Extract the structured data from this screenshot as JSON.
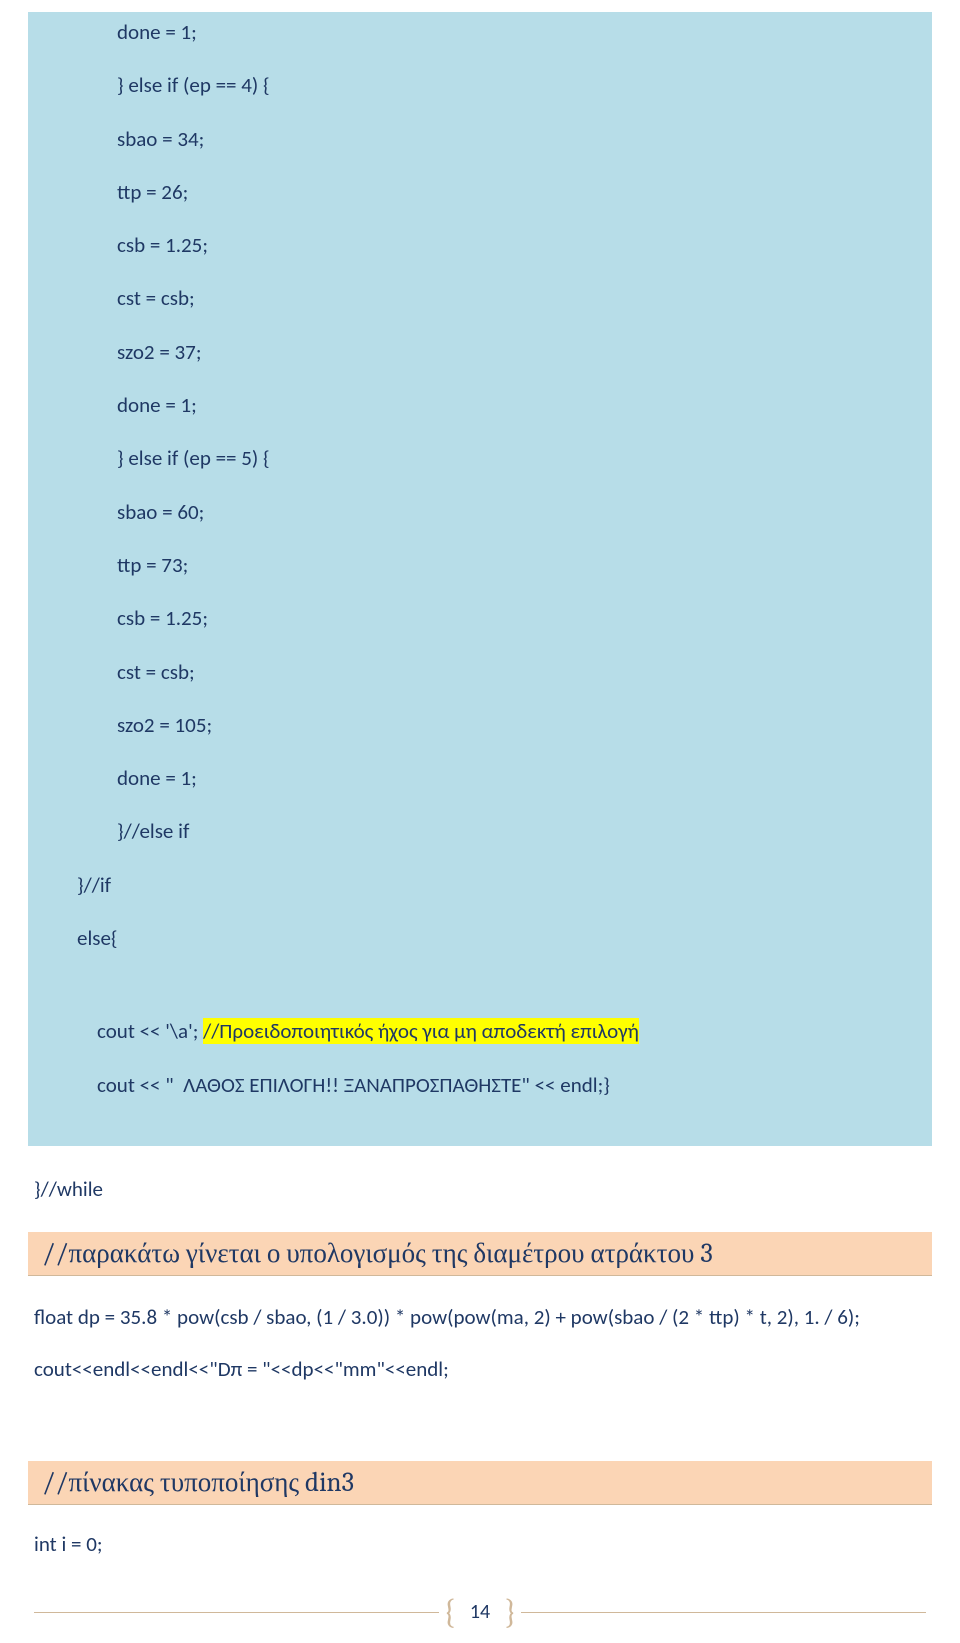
{
  "codebox1": {
    "bg": "#b7dde8",
    "text_color": "#1f3864",
    "lines": [
      {
        "indent": 80,
        "text": "done = 1;"
      },
      {
        "indent": 80,
        "text": "} else if (ep == 4) {"
      },
      {
        "indent": 80,
        "text": "sbao = 34;"
      },
      {
        "indent": 80,
        "text": "ttp = 26;"
      },
      {
        "indent": 80,
        "text": "csb = 1.25;"
      },
      {
        "indent": 80,
        "text": "cst = csb;"
      },
      {
        "indent": 80,
        "text": "szo2 = 37;"
      },
      {
        "indent": 80,
        "text": "done = 1;"
      },
      {
        "indent": 80,
        "text": "} else if (ep == 5) {"
      },
      {
        "indent": 80,
        "text": "sbao = 60;"
      },
      {
        "indent": 80,
        "text": "ttp = 73;"
      },
      {
        "indent": 80,
        "text": "csb = 1.25;"
      },
      {
        "indent": 80,
        "text": "cst = csb;"
      },
      {
        "indent": 80,
        "text": "szo2 = 105;"
      },
      {
        "indent": 80,
        "text": "done = 1;"
      },
      {
        "indent": 80,
        "text": "}//else if"
      },
      {
        "indent": 40,
        "text": "}//if"
      },
      {
        "indent": 40,
        "text": "else{"
      }
    ],
    "highlight_lines": [
      {
        "indent": 60,
        "pre": "cout << '\\a'; ",
        "hl": "//Προειδοποιητικός ήχος για μη αποδεκτή επιλογή"
      },
      {
        "indent": 60,
        "text": "cout << \"  ΛΑΘΟΣ ΕΠΙΛΟΓΗ!! ΞΑΝΑΠΡΟΣΠΑΘΗΣΤΕ\" << endl;}"
      }
    ]
  },
  "while_line": "}//while",
  "banner1": {
    "text": " //παρακάτω γίνεται ο υπολογισμός της διαμέτρου ατράκτου 3",
    "bg": "#fbd5b5"
  },
  "after1": [
    "float dp = 35.8 * pow(csb / sbao, (1 / 3.0)) * pow(pow(ma, 2) + pow(sbao / (2 * ttp) * t, 2), 1. / 6);",
    "cout<<endl<<endl<<\"Dπ = \"<<dp<<\"mm\"<<endl;"
  ],
  "banner2": {
    "text": "  //πίνακας τυποποίησης din3",
    "bg": "#fbd5b5"
  },
  "after2": "int i = 0;",
  "page_number": "14",
  "highlight_color": "#ffff00"
}
